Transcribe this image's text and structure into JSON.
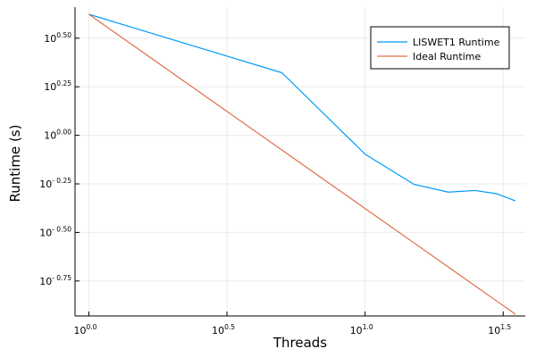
{
  "chart_data": {
    "type": "line",
    "title": "",
    "xlabel": "Threads",
    "ylabel": "Runtime (s)",
    "xscale": "log10",
    "yscale": "log10",
    "xlim_log10": [
      -0.05,
      1.58
    ],
    "ylim_log10": [
      -0.93,
      0.66
    ],
    "grid": true,
    "legend_position": "top-right",
    "x_ticks": [
      {
        "base": "10",
        "exp": "0.0",
        "value": 0.0
      },
      {
        "base": "10",
        "exp": "0.5",
        "value": 0.5
      },
      {
        "base": "10",
        "exp": "1.0",
        "value": 1.0
      },
      {
        "base": "10",
        "exp": "1.5",
        "value": 1.5
      }
    ],
    "y_ticks": [
      {
        "base": "10",
        "exp": "0.50",
        "value": 0.5
      },
      {
        "base": "10",
        "exp": "0.25",
        "value": 0.25
      },
      {
        "base": "10",
        "exp": "0.00",
        "value": 0.0
      },
      {
        "base": "10",
        "exp": "- 0.25",
        "value": -0.25
      },
      {
        "base": "10",
        "exp": "- 0.50",
        "value": -0.5
      },
      {
        "base": "10",
        "exp": "- 0.75",
        "value": -0.75
      }
    ],
    "x": [
      1,
      5,
      10,
      15,
      20,
      25,
      30,
      35
    ],
    "series": [
      {
        "name": "LISWET1 Runtime",
        "color": "#009AFA",
        "values": [
          4.2,
          2.1,
          0.8,
          0.56,
          0.51,
          0.52,
          0.5,
          0.46
        ]
      },
      {
        "name": "Ideal Runtime",
        "color": "#E26F46",
        "values": [
          4.2,
          0.84,
          0.42,
          0.28,
          0.21,
          0.168,
          0.14,
          0.12
        ]
      }
    ]
  }
}
